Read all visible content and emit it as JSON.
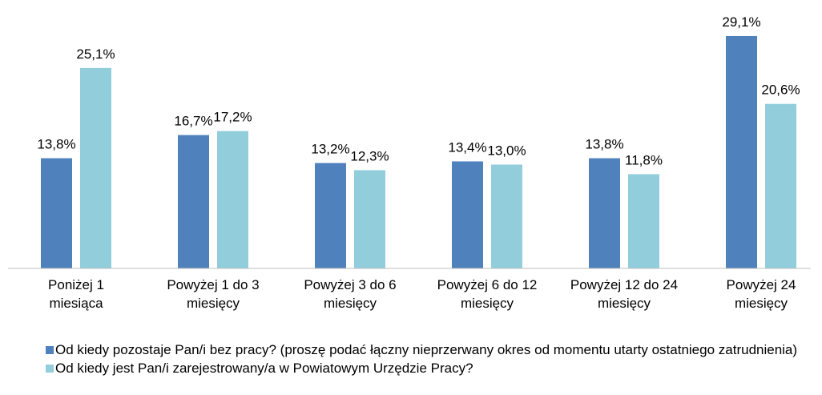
{
  "chart_data": {
    "type": "bar",
    "categories": [
      "Poniżej 1\nmiesiąca",
      "Powyżej 1 do 3\nmiesięcy",
      "Powyżej 3 do 6\nmiesięcy",
      "Powyżej 6 do 12\nmiesięcy",
      "Powyżej 12 do 24\nmiesięcy",
      "Powyżej 24\nmiesięcy"
    ],
    "series": [
      {
        "name": "Od kiedy pozostaje Pan/i bez pracy? (proszę podać łączny nieprzerwany okres od momentu utarty ostatniego zatrudnienia)",
        "color": "#4f81bd",
        "values": [
          13.8,
          16.7,
          13.2,
          13.4,
          13.8,
          29.1
        ],
        "value_labels": [
          "13,8%",
          "16,7%",
          "13,2%",
          "13,4%",
          "13,8%",
          "29,1%"
        ]
      },
      {
        "name": "Od kiedy jest Pan/i zarejestrowany/a w Powiatowym Urzędzie Pracy?",
        "color": "#92cddc",
        "values": [
          25.1,
          17.2,
          12.3,
          13.0,
          11.8,
          20.6
        ],
        "value_labels": [
          "25,1%",
          "17,2%",
          "12,3%",
          "13,0%",
          "11,8%",
          "20,6%"
        ]
      }
    ],
    "ylim": [
      0,
      30
    ]
  }
}
